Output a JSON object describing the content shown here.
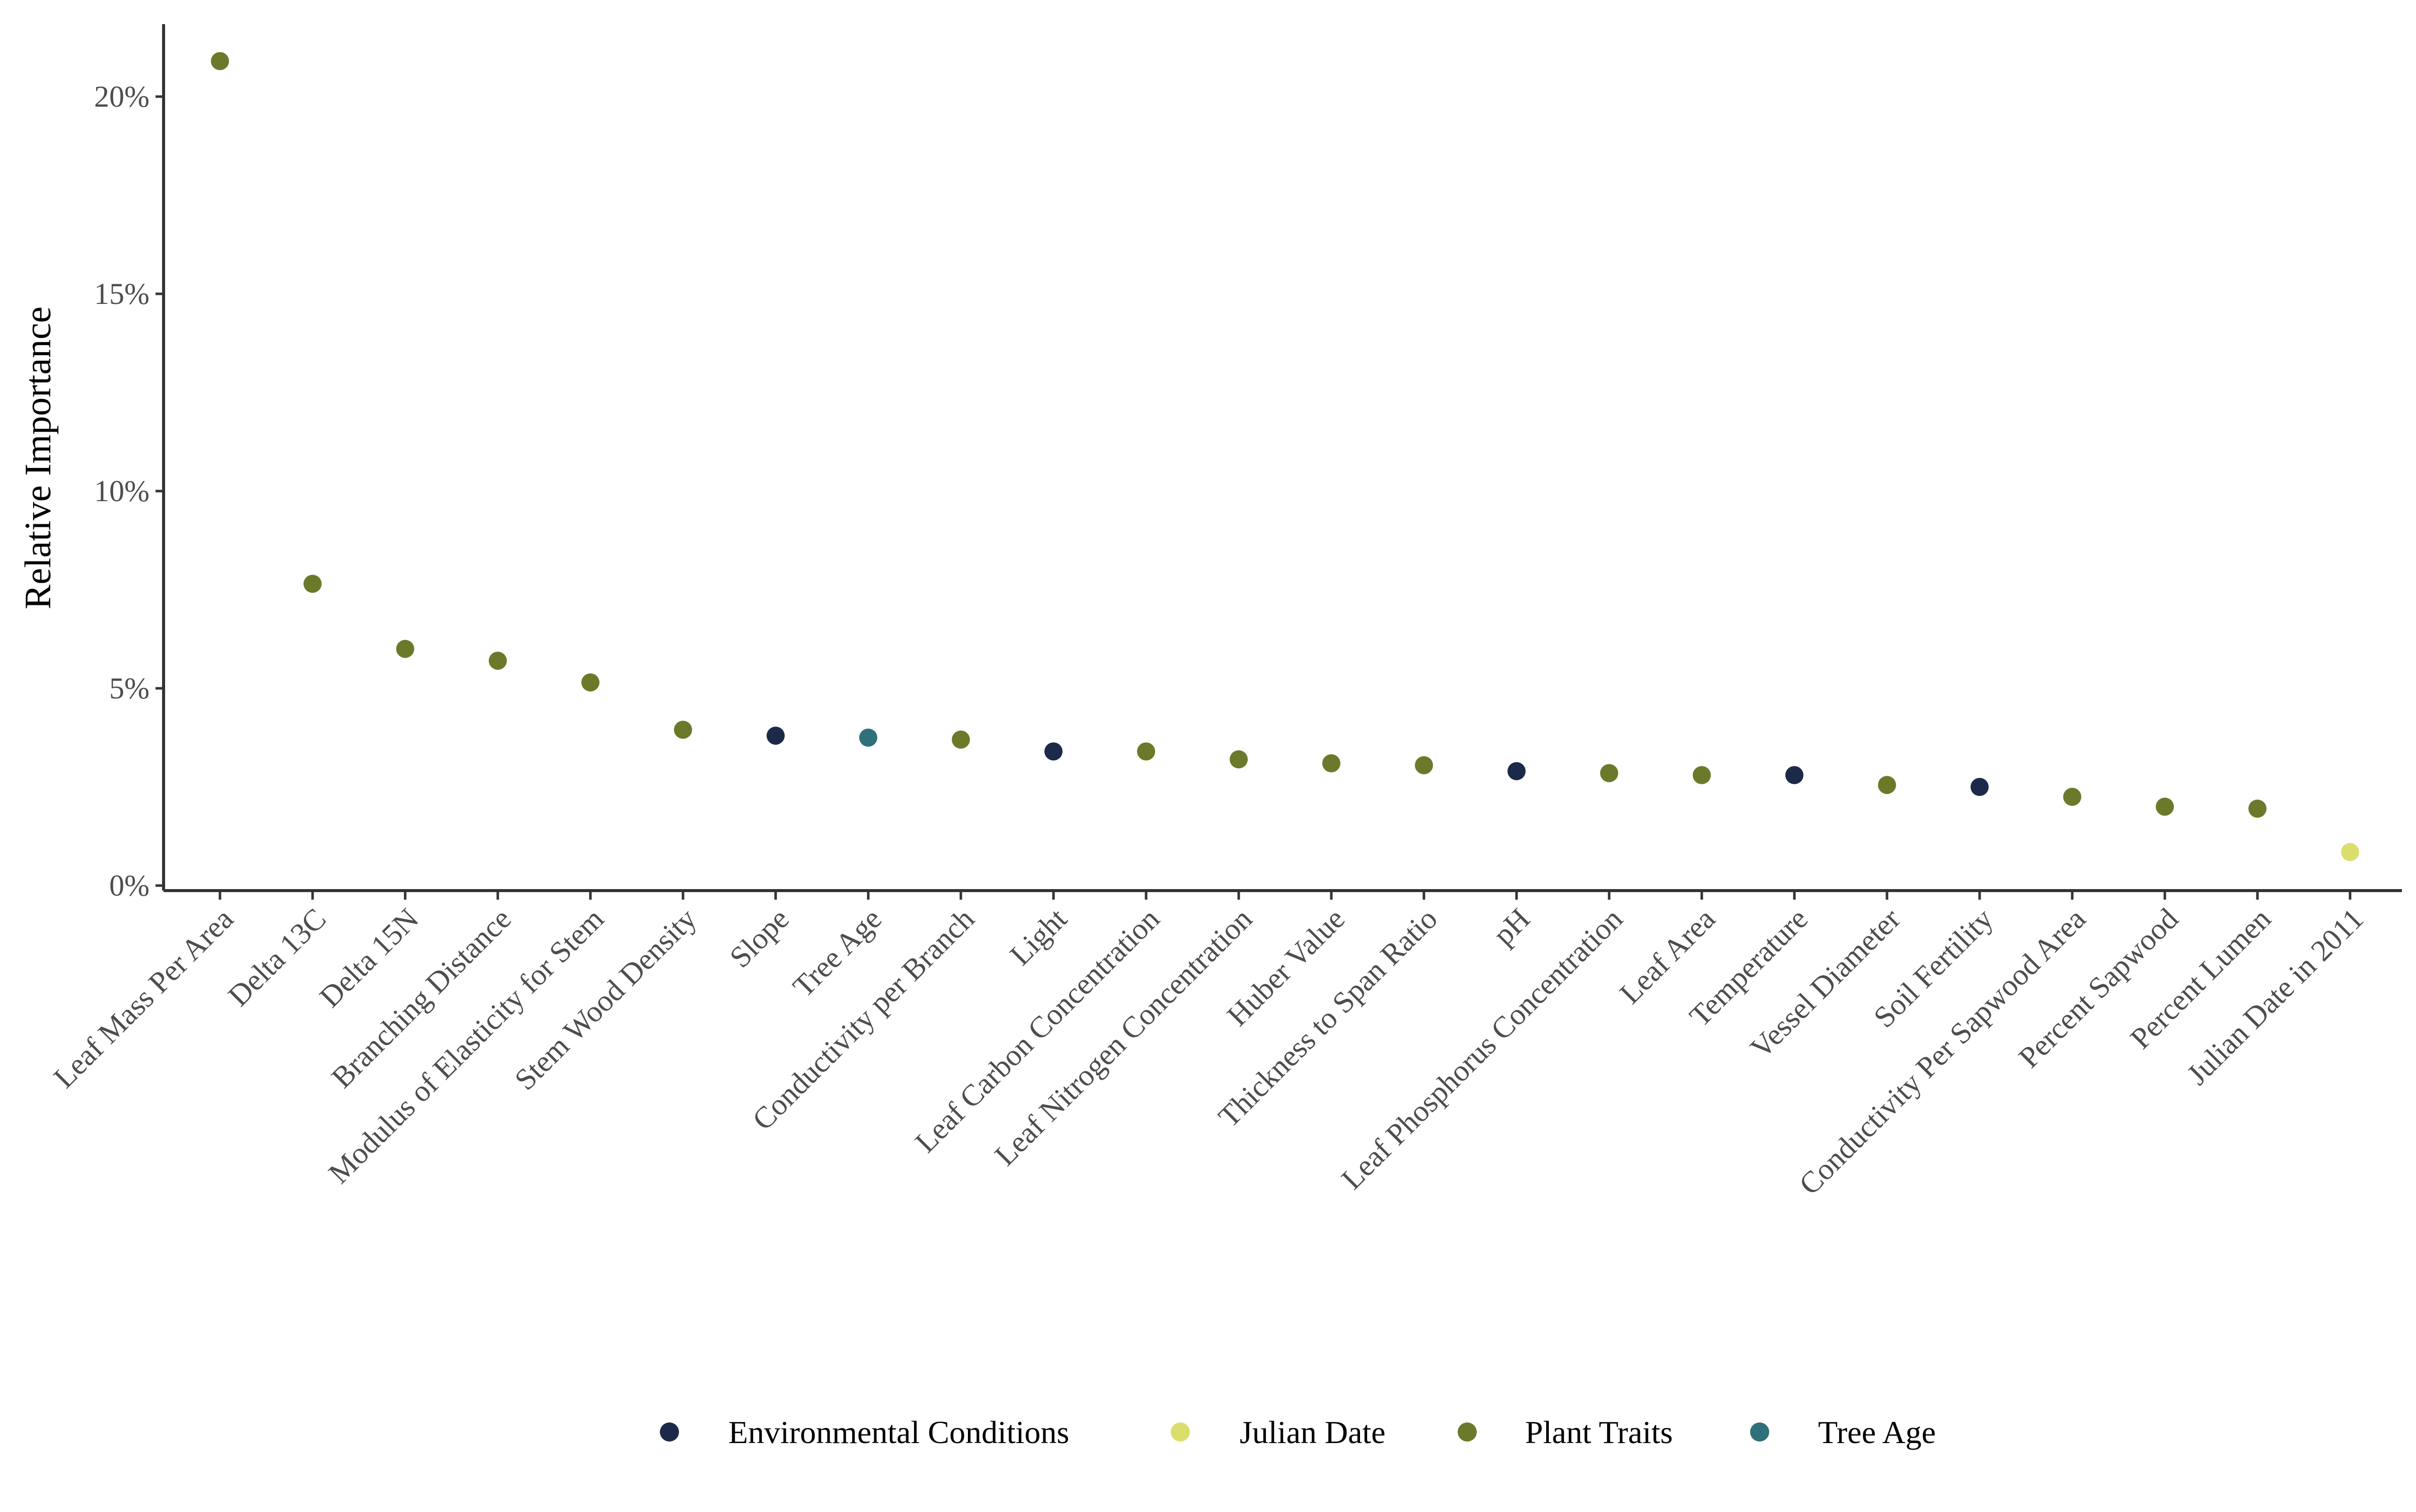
{
  "chart_data": {
    "type": "scatter",
    "title": "",
    "xlabel": "",
    "ylabel": "Relative Importance",
    "ylim": [
      0,
      22
    ],
    "y_ticks": [
      0,
      5,
      10,
      15,
      20
    ],
    "y_tick_labels": [
      "0%",
      "5%",
      "10%",
      "15%",
      "20%"
    ],
    "grid": false,
    "legend_position": "bottom",
    "categories": [
      "Leaf Mass Per Area",
      "Delta 13C",
      "Delta 15N",
      "Branching Distance",
      "Modulus of Elasticity for Stem",
      "Stem Wood Density",
      "Slope",
      "Tree Age",
      "Conductivity per Branch",
      "Light",
      "Leaf Carbon Concentration",
      "Leaf Nitrogen Concentration",
      "Huber Value",
      "Thickness to Span Ratio",
      "pH",
      "Leaf Phosphorus Concentration",
      "Leaf Area",
      "Temperature",
      "Vessel Diameter",
      "Soil Fertility",
      "Conductivity Per Sapwood Area",
      "Percent Sapwood",
      "Percent Lumen",
      "Julian Date in 2011"
    ],
    "values": [
      20.9,
      7.65,
      6.0,
      5.7,
      5.15,
      3.95,
      3.8,
      3.75,
      3.7,
      3.4,
      3.4,
      3.2,
      3.1,
      3.05,
      2.9,
      2.85,
      2.8,
      2.8,
      2.55,
      2.5,
      2.25,
      2.0,
      1.95,
      0.85
    ],
    "groups": [
      "Plant Traits",
      "Plant Traits",
      "Plant Traits",
      "Plant Traits",
      "Plant Traits",
      "Plant Traits",
      "Environmental Conditions",
      "Tree Age",
      "Plant Traits",
      "Environmental Conditions",
      "Plant Traits",
      "Plant Traits",
      "Plant Traits",
      "Plant Traits",
      "Environmental Conditions",
      "Plant Traits",
      "Plant Traits",
      "Environmental Conditions",
      "Plant Traits",
      "Environmental Conditions",
      "Plant Traits",
      "Plant Traits",
      "Plant Traits",
      "Julian Date"
    ],
    "legend": [
      {
        "name": "Environmental Conditions",
        "color": "#1c2a4a"
      },
      {
        "name": "Julian Date",
        "color": "#dcde6c"
      },
      {
        "name": "Plant Traits",
        "color": "#6b7a2a"
      },
      {
        "name": "Tree Age",
        "color": "#2f717a"
      }
    ]
  }
}
